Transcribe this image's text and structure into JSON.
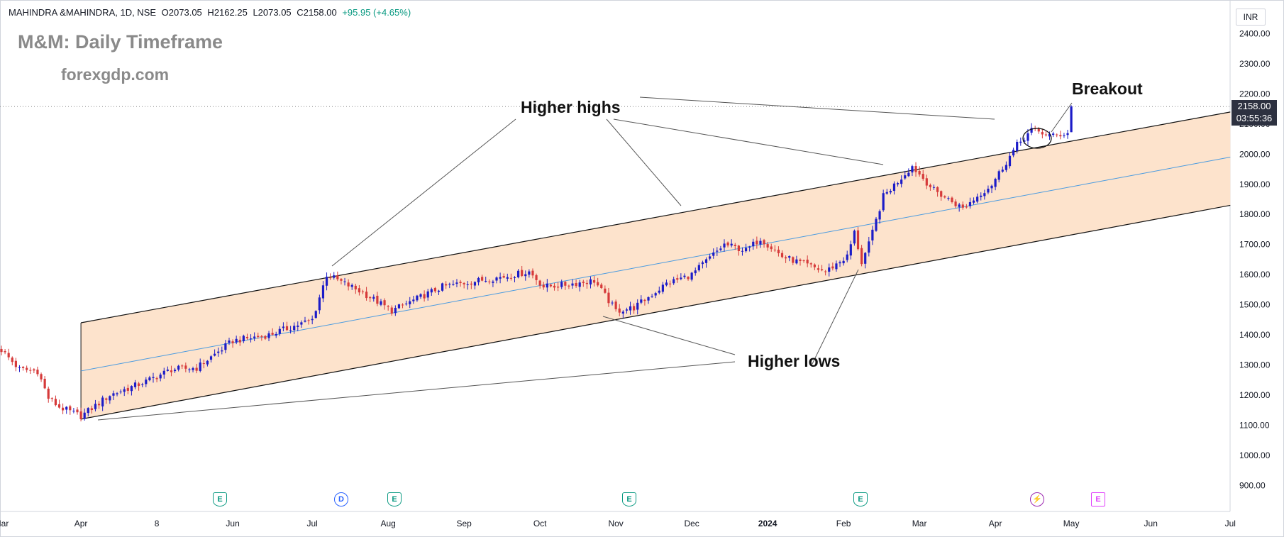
{
  "header": {
    "symbol": "MAHINDRA &MAHINDRA, 1D, NSE",
    "open_label": "O",
    "open": "2073.05",
    "high_label": "H",
    "high": "2162.25",
    "low_label": "L",
    "low": "2073.05",
    "close_label": "C",
    "close": "2158.00",
    "change": "+95.95 (+4.65%)"
  },
  "overlay": {
    "title": "M&M: Daily Timeframe",
    "subtitle": "forexgdp.com",
    "annotations": {
      "higher_highs": "Higher highs",
      "higher_lows": "Higher lows",
      "breakout": "Breakout"
    }
  },
  "price_scale": {
    "currency": "INR",
    "current_price": "2158.00",
    "countdown": "03:55:36"
  },
  "events": [
    "E",
    "D",
    "E",
    "E",
    "E",
    "⚡",
    "E"
  ],
  "colors": {
    "up": "#1c1cc8",
    "down": "#d63a3a",
    "channel_fill": "#fde3cc",
    "mid_line": "#4a9be0",
    "line": "#111111"
  },
  "chart_data": {
    "type": "candlestick",
    "title": "M&M: Daily Timeframe",
    "ylim": [
      820,
      2500
    ],
    "y_ticks": [
      900,
      1000,
      1100,
      1200,
      1300,
      1400,
      1500,
      1600,
      1700,
      1800,
      1900,
      2000,
      2100,
      2200,
      2300,
      2400
    ],
    "x_ticks": [
      "Mar",
      "Apr",
      "8",
      "Jun",
      "Jul",
      "Aug",
      "Sep",
      "Oct",
      "Nov",
      "Dec",
      "2024",
      "Feb",
      "Mar",
      "Apr",
      "May",
      "Jun",
      "Jul"
    ],
    "x_tick_positions": [
      0,
      22,
      43,
      64,
      86,
      107,
      128,
      149,
      170,
      191,
      212,
      233,
      254,
      275,
      296,
      318,
      340
    ],
    "waypoints": [
      [
        0,
        1350
      ],
      [
        5,
        1285
      ],
      [
        10,
        1280
      ],
      [
        13,
        1190
      ],
      [
        16,
        1160
      ],
      [
        22,
        1130
      ],
      [
        30,
        1200
      ],
      [
        40,
        1245
      ],
      [
        47,
        1285
      ],
      [
        54,
        1290
      ],
      [
        64,
        1380
      ],
      [
        74,
        1400
      ],
      [
        86,
        1450
      ],
      [
        90,
        1600
      ],
      [
        100,
        1540
      ],
      [
        108,
        1480
      ],
      [
        122,
        1560
      ],
      [
        132,
        1580
      ],
      [
        140,
        1595
      ],
      [
        146,
        1610
      ],
      [
        150,
        1560
      ],
      [
        155,
        1565
      ],
      [
        164,
        1580
      ],
      [
        170,
        1480
      ],
      [
        175,
        1490
      ],
      [
        184,
        1570
      ],
      [
        191,
        1600
      ],
      [
        200,
        1700
      ],
      [
        206,
        1680
      ],
      [
        210,
        1720
      ],
      [
        216,
        1660
      ],
      [
        228,
        1610
      ],
      [
        234,
        1660
      ],
      [
        236,
        1740
      ],
      [
        238,
        1640
      ],
      [
        240,
        1700
      ],
      [
        244,
        1860
      ],
      [
        252,
        1960
      ],
      [
        258,
        1880
      ],
      [
        266,
        1820
      ],
      [
        274,
        1900
      ],
      [
        281,
        2030
      ],
      [
        285,
        2080
      ],
      [
        291,
        2060
      ],
      [
        296,
        2073
      ]
    ],
    "last_candle": {
      "open": 2073.05,
      "high": 2162.25,
      "low": 2073.05,
      "close": 2158.0
    },
    "channel": {
      "upper": [
        [
          22,
          1440
        ],
        [
          340,
          2140
        ]
      ],
      "lower": [
        [
          22,
          1120
        ],
        [
          340,
          1830
        ]
      ],
      "middle": [
        [
          22,
          1280
        ],
        [
          340,
          1990
        ]
      ]
    }
  }
}
